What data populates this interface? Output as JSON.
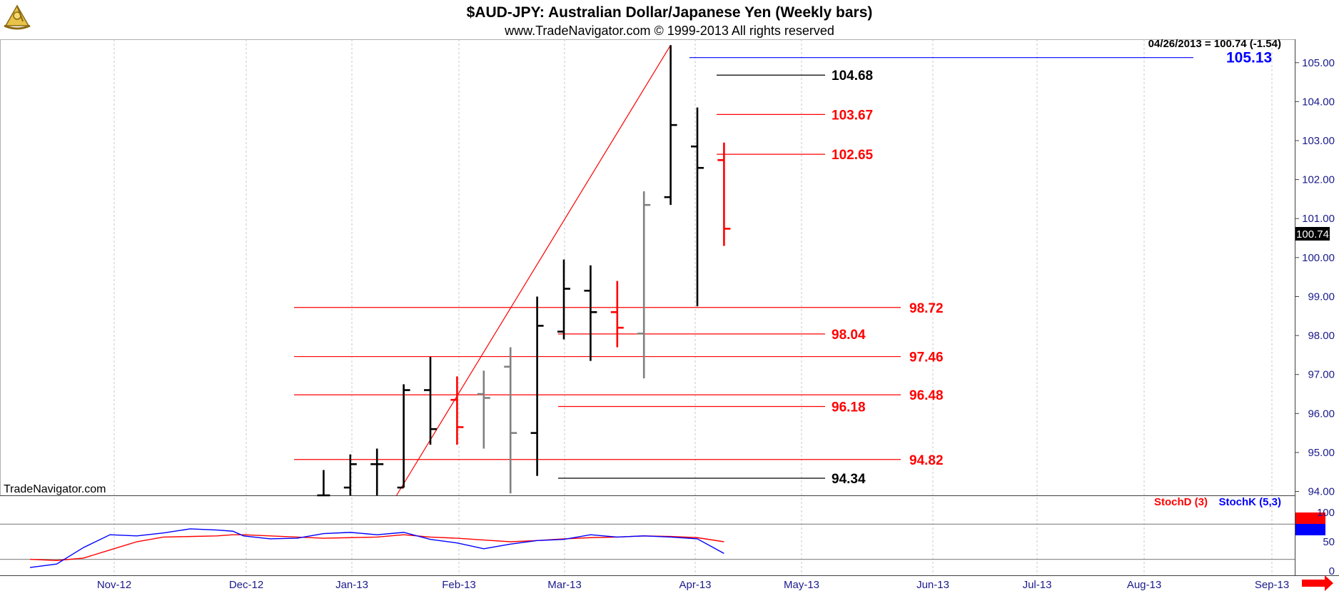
{
  "header": {
    "title": "$AUD-JPY:  Australian Dollar/Japanese Yen  (Weekly bars)",
    "subtitle": "www.TradeNavigator.com © 1999-2013 All rights reserved"
  },
  "info": {
    "last_bar": "04/26/2013 = 100.74 (-1.54)",
    "watermark": "TradeNavigator.com",
    "last_price_tag": "100.74"
  },
  "colors": {
    "up_bar": "#000000",
    "down_bar": "#ff0000",
    "neutral_bar": "#808080",
    "fib_level": "#ff0000",
    "target_level": "#0000ff",
    "stoch_d": "#ff0000",
    "stoch_k": "#0000ff",
    "axis_label": "#1a1a8c"
  },
  "chart_data": [
    {
      "type": "ohlc",
      "title": "$AUD-JPY:  Australian Dollar/Japanese Yen  (Weekly bars)",
      "ylim": [
        93.9,
        105.6
      ],
      "y_ticks": [
        "105.00",
        "104.00",
        "103.00",
        "102.00",
        "101.00",
        "100.00",
        "99.00",
        "98.00",
        "97.00",
        "96.00",
        "95.00",
        "94.00"
      ],
      "x_ticks": [
        "Nov-12",
        "Dec-12",
        "Jan-13",
        "Feb-13",
        "Mar-13",
        "Apr-13",
        "May-13",
        "Jun-13",
        "Jul-13",
        "Aug-13",
        "Sep-13"
      ],
      "bars": [
        {
          "week": 11,
          "open": 93.9,
          "high": 94.55,
          "low": 93.9,
          "close": 93.9,
          "color": "black"
        },
        {
          "week": 12,
          "open": 94.1,
          "high": 94.95,
          "low": 93.9,
          "close": 94.7,
          "color": "black"
        },
        {
          "week": 13,
          "open": 94.7,
          "high": 95.1,
          "low": 93.9,
          "close": 94.7,
          "color": "black"
        },
        {
          "week": 14,
          "open": 94.1,
          "high": 96.75,
          "low": 94.1,
          "close": 96.6,
          "color": "black"
        },
        {
          "week": 15,
          "open": 96.6,
          "high": 97.45,
          "low": 95.2,
          "close": 95.6,
          "color": "black"
        },
        {
          "week": 16,
          "open": 96.35,
          "high": 96.95,
          "low": 95.2,
          "close": 95.65,
          "color": "red"
        },
        {
          "week": 17,
          "open": 96.5,
          "high": 97.1,
          "low": 95.1,
          "close": 96.4,
          "color": "gray"
        },
        {
          "week": 18,
          "open": 97.2,
          "high": 97.7,
          "low": 93.95,
          "close": 95.5,
          "color": "gray"
        },
        {
          "week": 19,
          "open": 95.5,
          "high": 99.0,
          "low": 94.4,
          "close": 98.25,
          "color": "black"
        },
        {
          "week": 20,
          "open": 98.1,
          "high": 99.95,
          "low": 97.9,
          "close": 99.2,
          "color": "black"
        },
        {
          "week": 21,
          "open": 99.15,
          "high": 99.8,
          "low": 97.35,
          "close": 98.6,
          "color": "black"
        },
        {
          "week": 22,
          "open": 98.6,
          "high": 99.4,
          "low": 97.7,
          "close": 98.2,
          "color": "red"
        },
        {
          "week": 23,
          "open": 98.05,
          "high": 101.7,
          "low": 96.9,
          "close": 101.35,
          "color": "gray"
        },
        {
          "week": 24,
          "open": 101.55,
          "high": 105.45,
          "low": 101.35,
          "close": 103.4,
          "color": "black"
        },
        {
          "week": 25,
          "open": 102.85,
          "high": 103.85,
          "low": 98.75,
          "close": 102.3,
          "color": "black"
        },
        {
          "week": 26,
          "open": 102.5,
          "high": 102.95,
          "low": 100.3,
          "close": 100.74,
          "color": "red"
        }
      ],
      "levels": [
        {
          "value": 105.13,
          "label": "105.13",
          "color": "blue"
        },
        {
          "value": 104.68,
          "label": "104.68",
          "color": "black"
        },
        {
          "value": 103.67,
          "label": "103.67",
          "color": "red"
        },
        {
          "value": 102.65,
          "label": "102.65",
          "color": "red"
        },
        {
          "value": 98.72,
          "label": "98.72",
          "color": "red"
        },
        {
          "value": 98.04,
          "label": "98.04",
          "color": "red"
        },
        {
          "value": 97.46,
          "label": "97.46",
          "color": "red"
        },
        {
          "value": 96.48,
          "label": "96.48",
          "color": "red"
        },
        {
          "value": 96.18,
          "label": "96.18",
          "color": "red"
        },
        {
          "value": 94.82,
          "label": "94.82",
          "color": "red"
        },
        {
          "value": 94.34,
          "label": "94.34",
          "color": "black"
        }
      ],
      "trendline": {
        "from": {
          "week": 14,
          "value": 93.9
        },
        "to": {
          "week": 24,
          "value": 105.45
        },
        "color": "red"
      },
      "grid": true
    },
    {
      "type": "line",
      "ylim": [
        0,
        100
      ],
      "y_ticks": [
        "100",
        "50",
        "0"
      ],
      "reference_lines": [
        80,
        20
      ],
      "series": [
        {
          "name": "StochD (3)",
          "color": "red",
          "x": [
            0,
            1,
            2,
            3,
            4,
            5,
            6,
            7,
            7.6,
            8,
            9,
            10,
            11,
            12,
            13,
            14,
            15,
            16,
            17,
            18,
            19,
            20,
            21,
            22,
            23,
            24,
            25,
            26
          ],
          "values": [
            20,
            18,
            22,
            36,
            50,
            58,
            59,
            60,
            62,
            62,
            60,
            58,
            56,
            57,
            58,
            62,
            58,
            56,
            53,
            50,
            52,
            55,
            57,
            58,
            60,
            59,
            57,
            50
          ]
        },
        {
          "name": "StochK (5,3)",
          "color": "blue",
          "x": [
            0,
            1,
            2,
            3,
            4,
            5,
            6,
            7,
            7.6,
            8,
            9,
            10,
            11,
            12,
            13,
            14,
            15,
            16,
            17,
            18,
            19,
            20,
            21,
            22,
            23,
            24,
            25,
            26
          ],
          "values": [
            6,
            12,
            40,
            62,
            60,
            65,
            72,
            70,
            68,
            60,
            55,
            56,
            64,
            66,
            62,
            66,
            54,
            48,
            38,
            46,
            52,
            54,
            62,
            58,
            60,
            58,
            55,
            30
          ]
        }
      ],
      "legend": "top-right"
    }
  ]
}
